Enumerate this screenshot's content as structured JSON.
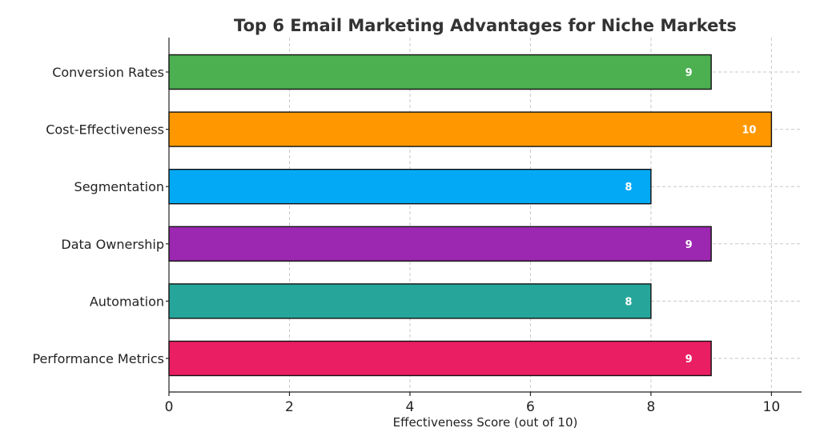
{
  "chart_data": {
    "type": "bar",
    "orientation": "horizontal",
    "title": "Top 6 Email Marketing Advantages for Niche Markets",
    "xlabel": "Effectiveness Score (out of 10)",
    "ylabel": "",
    "xlim": [
      0,
      10.5
    ],
    "xticks": [
      0,
      2,
      4,
      6,
      8,
      10
    ],
    "xtick_labels": [
      "0",
      "2",
      "4",
      "6",
      "8",
      "10"
    ],
    "grid": true,
    "categories": [
      "Conversion Rates",
      "Cost-Effectiveness",
      "Segmentation",
      "Data Ownership",
      "Automation",
      "Performance Metrics"
    ],
    "values": [
      9,
      10,
      8,
      9,
      8,
      9
    ],
    "value_labels": [
      "9",
      "10",
      "8",
      "9",
      "8",
      "9"
    ],
    "colors": [
      "#4caf50",
      "#ff9800",
      "#03a9f4",
      "#9c27b0",
      "#26a69a",
      "#e91e63"
    ]
  }
}
